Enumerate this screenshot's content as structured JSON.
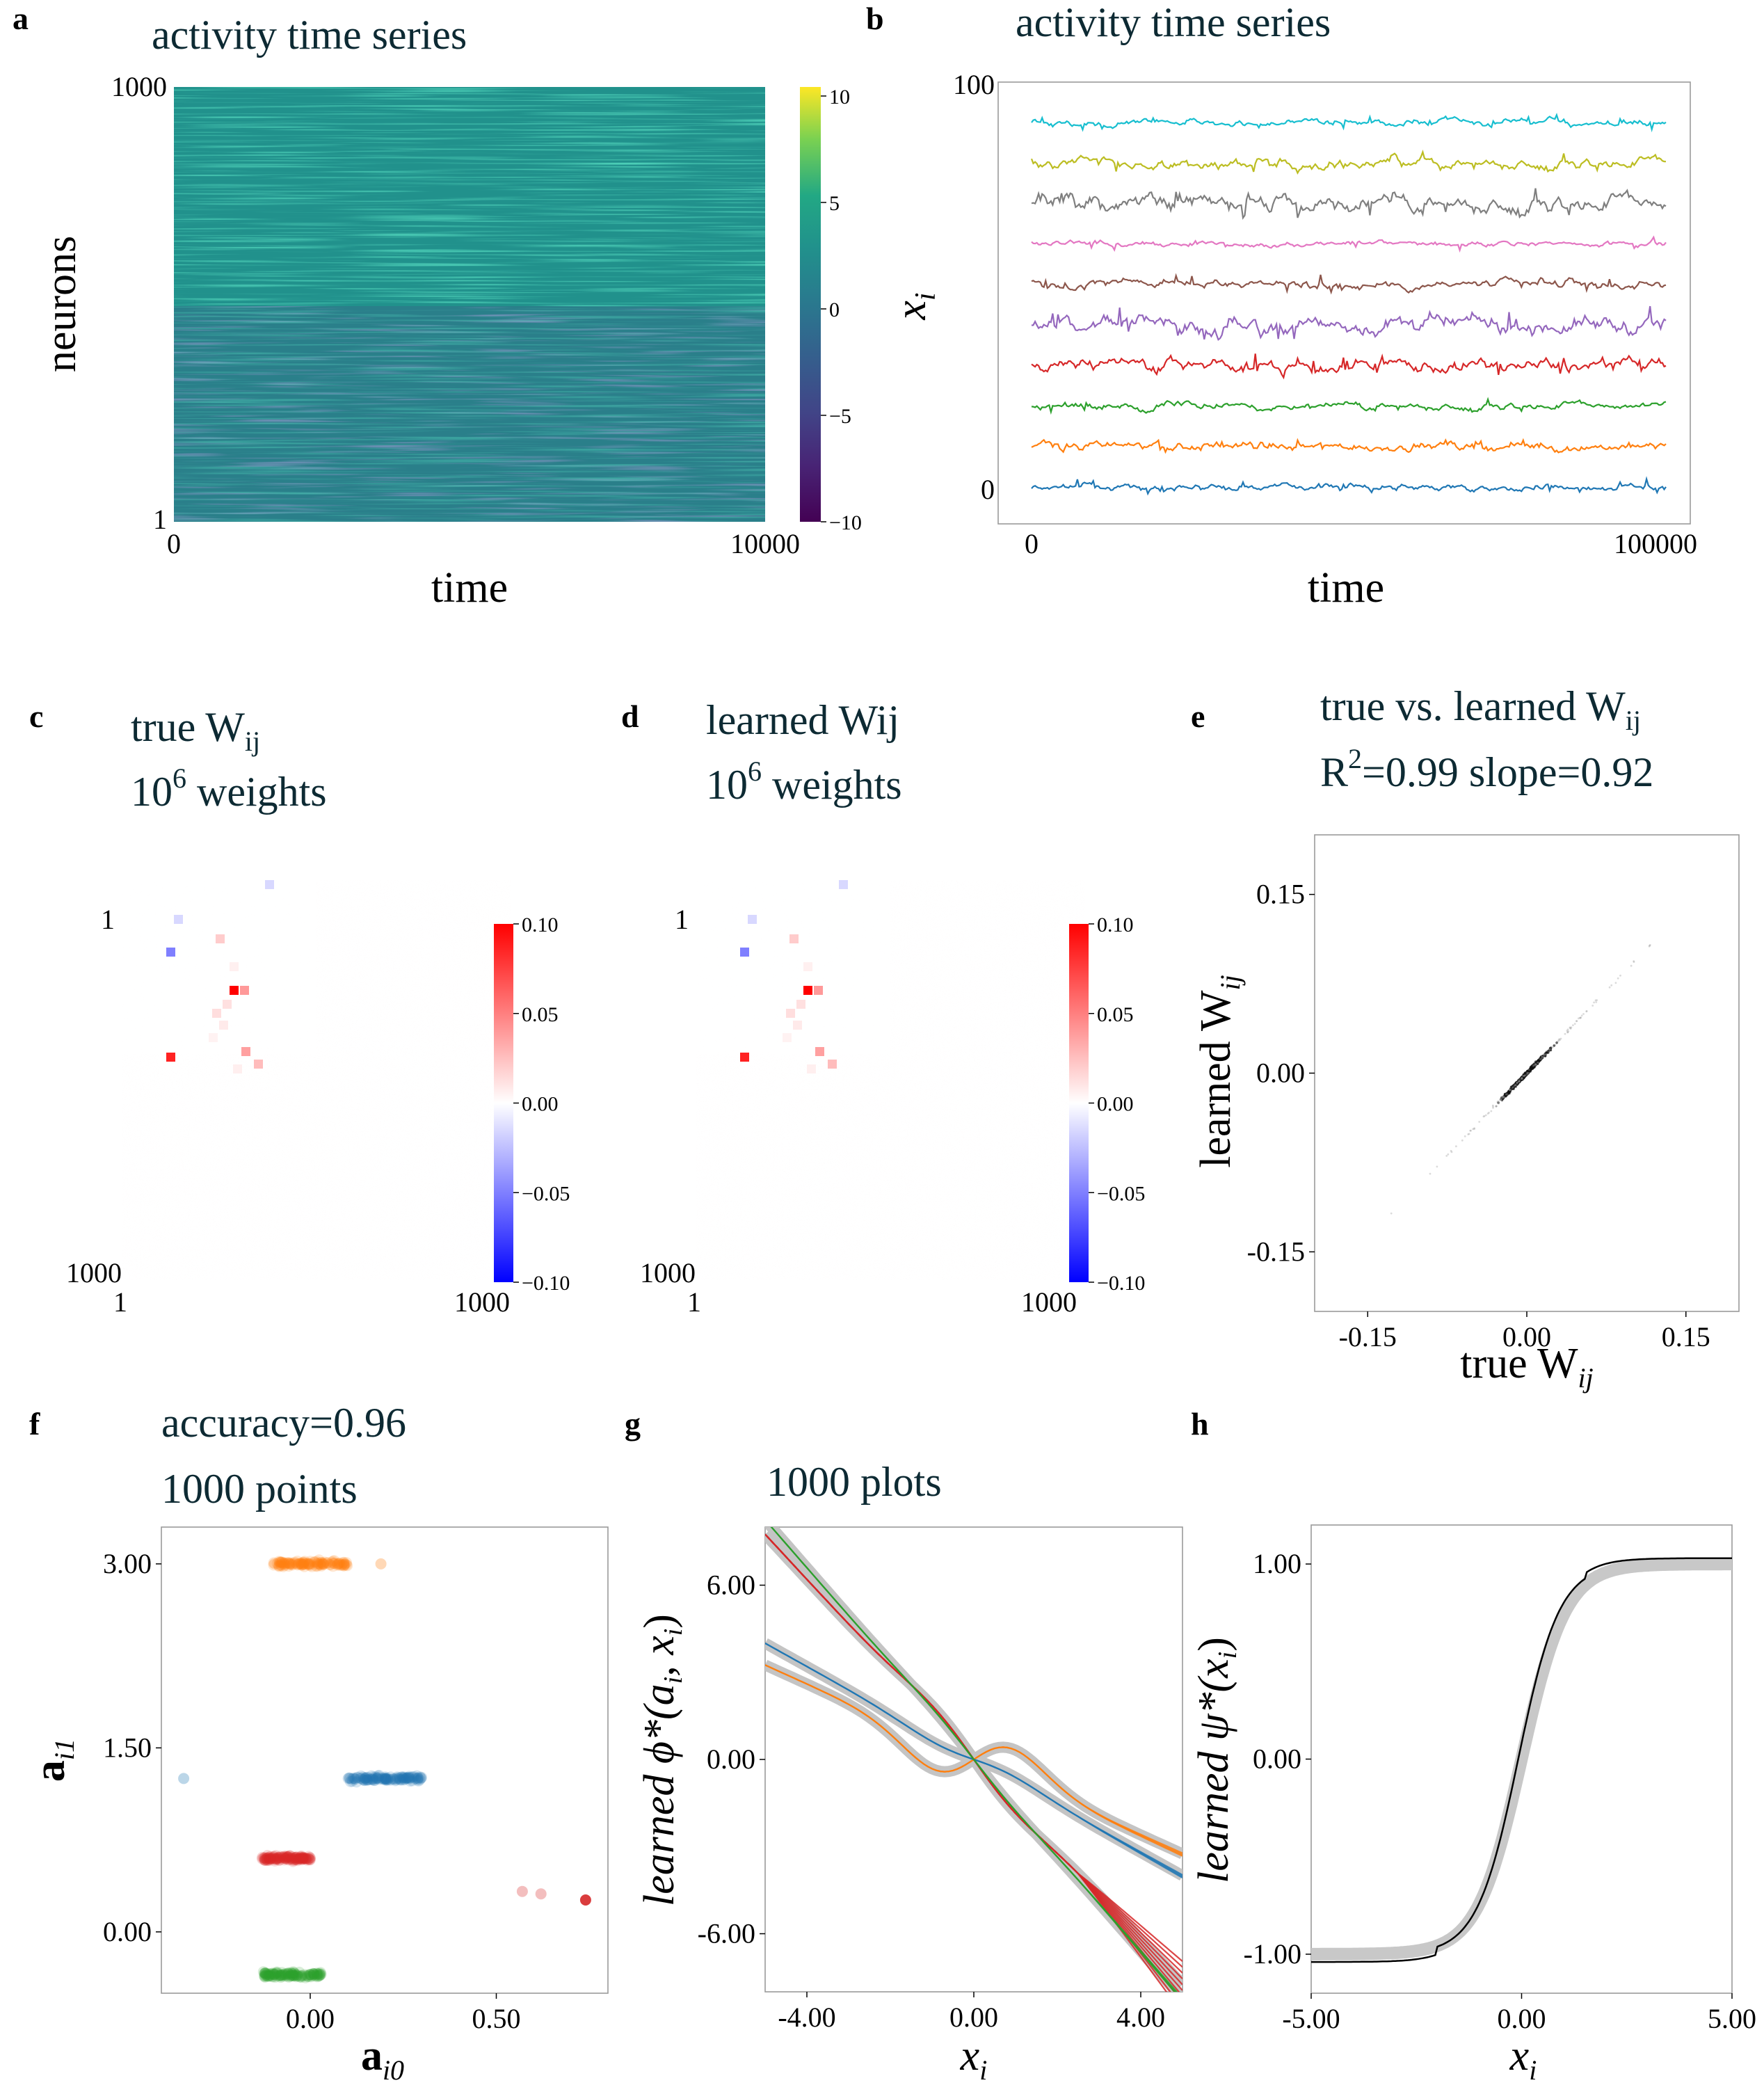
{
  "panels": [
    {
      "id": "a",
      "label": "a",
      "title": "activity time series",
      "chart_data": {
        "type": "heatmap",
        "title": "activity time series",
        "xlabel": "time",
        "ylabel": "neurons",
        "x_ticks": [
          "0",
          "10000"
        ],
        "y_ticks": [
          "1000",
          "1"
        ],
        "xlim": [
          0,
          10000
        ],
        "ylim": [
          1,
          1000
        ],
        "colorbar": {
          "ticks": [
            "10",
            "5",
            "0",
            "−5",
            "−10"
          ],
          "range": [
            -10,
            10
          ],
          "colormap": "viridis"
        },
        "block_boundary_neuron": 500
      }
    },
    {
      "id": "b",
      "label": "b",
      "title": "activity time series",
      "chart_data": {
        "type": "line",
        "title": "activity time series",
        "xlabel": "time",
        "ylabel": "x_i",
        "ylabel_display": "x",
        "ylabel_sub": "i",
        "x_ticks": [
          "0",
          "100000"
        ],
        "y_ticks": [
          "100",
          "0"
        ],
        "xlim": [
          0,
          100000
        ],
        "ylim": [
          0,
          100
        ],
        "series": [
          {
            "baseline": 0,
            "color": "#1f77b4",
            "amplitude": 3
          },
          {
            "baseline": 10,
            "color": "#ff7f0e",
            "amplitude": 4
          },
          {
            "baseline": 20,
            "color": "#2ca02c",
            "amplitude": 3.5
          },
          {
            "baseline": 30,
            "color": "#d62728",
            "amplitude": 6
          },
          {
            "baseline": 40,
            "color": "#9467bd",
            "amplitude": 8
          },
          {
            "baseline": 50,
            "color": "#8c564b",
            "amplitude": 4
          },
          {
            "baseline": 60,
            "color": "#e377c2",
            "amplitude": 2.5
          },
          {
            "baseline": 70,
            "color": "#7f7f7f",
            "amplitude": 8
          },
          {
            "baseline": 80,
            "color": "#bcbd22",
            "amplitude": 5
          },
          {
            "baseline": 90,
            "color": "#17becf",
            "amplitude": 3
          }
        ]
      }
    },
    {
      "id": "c",
      "label": "c",
      "title_line1": "true W",
      "title_line1_sub": "ij",
      "title_line2_base": "10",
      "title_line2_sup": "6",
      "title_line2_rest": " weights",
      "chart_data": {
        "type": "heatmap",
        "x_ticks": [
          "1",
          "1000"
        ],
        "y_ticks": [
          "1",
          "1000"
        ],
        "colorbar": {
          "ticks": [
            "0.10",
            "0.05",
            "0.00",
            "−0.05",
            "−0.10"
          ],
          "range": [
            -0.1,
            0.1
          ],
          "colormap": "bwr"
        }
      }
    },
    {
      "id": "d",
      "label": "d",
      "title_line1": "learned Wij",
      "title_line2_base": "10",
      "title_line2_sup": "6",
      "title_line2_rest": " weights",
      "chart_data": {
        "type": "heatmap",
        "x_ticks": [
          "1",
          "1000"
        ],
        "y_ticks": [
          "1",
          "1000"
        ],
        "colorbar": {
          "ticks": [
            "0.10",
            "0.05",
            "0.00",
            "−0.05",
            "−0.10"
          ],
          "range": [
            -0.1,
            0.1
          ],
          "colormap": "bwr"
        }
      }
    },
    {
      "id": "e",
      "label": "e",
      "title_line1": "true vs. learned W",
      "title_line1_sub": "ij",
      "title_line2_a": "R",
      "title_line2_sup": "2",
      "title_line2_b": "=0.99  slope=0.92",
      "chart_data": {
        "type": "scatter",
        "xlabel": "true W_ij",
        "ylabel": "learned W_ij",
        "xlabel_display": "true W",
        "ylabel_display": "learned W",
        "label_sub": "ij",
        "x_ticks": [
          "-0.15",
          "0.00",
          "0.15"
        ],
        "y_ticks": [
          "0.15",
          "0.00",
          "-0.15"
        ],
        "xlim": [
          -0.2,
          0.2
        ],
        "ylim": [
          -0.2,
          0.2
        ],
        "r2": 0.99,
        "slope": 0.92
      }
    },
    {
      "id": "f",
      "label": "f",
      "title_line1": "accuracy=0.96",
      "title_line2": "1000 points",
      "chart_data": {
        "type": "scatter",
        "xlabel": "a_i0",
        "ylabel": "a_i1",
        "xlabel_display": "a",
        "xlabel_sub": "i0",
        "ylabel_display": "a",
        "ylabel_sub": "i1",
        "x_ticks": [
          "0.00",
          "0.50"
        ],
        "y_ticks": [
          "3.00",
          "1.50",
          "0.00"
        ],
        "xlim": [
          -0.4,
          0.8
        ],
        "ylim": [
          -0.5,
          3.3
        ],
        "clusters": [
          {
            "color": "#ff7f0e",
            "x_range": [
              -0.1,
              0.1
            ],
            "y": 3.0,
            "count": 250
          },
          {
            "color": "#1f77b4",
            "x_range": [
              0.1,
              0.3
            ],
            "y": 1.25,
            "count": 250
          },
          {
            "color": "#d62728",
            "x_range": [
              -0.13,
              0.0
            ],
            "y": 0.6,
            "count": 250
          },
          {
            "color": "#2ca02c",
            "x_range": [
              -0.13,
              0.03
            ],
            "y": -0.35,
            "count": 250
          }
        ],
        "outliers": [
          {
            "x": -0.34,
            "y": 1.25,
            "color": "#1f77b4"
          },
          {
            "x": 0.19,
            "y": 3.0,
            "color": "#ff7f0e"
          },
          {
            "x": 0.57,
            "y": 0.33,
            "color": "#d62728"
          },
          {
            "x": 0.62,
            "y": 0.31,
            "color": "#d62728"
          },
          {
            "x": 0.74,
            "y": 0.26,
            "color": "#d62728"
          }
        ]
      }
    },
    {
      "id": "g",
      "label": "g",
      "title": "1000 plots",
      "chart_data": {
        "type": "line",
        "title": "1000 plots",
        "xlabel": "x_i",
        "ylabel": "learned phi*(a_i, x_i)",
        "xlabel_display": "x",
        "xlabel_sub": "i",
        "ylabel_display": "learned ϕ*(a",
        "ylabel_sub1": "i",
        "ylabel_mid": ", x",
        "ylabel_sub2": "i",
        "ylabel_end": ")",
        "x_ticks": [
          "-4.00",
          "0.00",
          "4.00"
        ],
        "y_ticks": [
          "6.00",
          "0.00",
          "-6.00"
        ],
        "xlim": [
          -5,
          5
        ],
        "ylim": [
          -8,
          8
        ],
        "series": [
          {
            "color": "#ff7f0e",
            "slope": -0.65,
            "bump": 1.6
          },
          {
            "color": "#1f77b4",
            "slope": -0.8,
            "bump": 0.3
          },
          {
            "color": "#d62728",
            "slope": -1.55,
            "bump": -0.5
          },
          {
            "color": "#2ca02c",
            "slope": -1.65,
            "bump": -0.2
          }
        ]
      }
    },
    {
      "id": "h",
      "label": "h",
      "chart_data": {
        "type": "line",
        "xlabel": "x_i",
        "ylabel": "learned psi*(x_i)",
        "xlabel_display": "x",
        "xlabel_sub": "i",
        "ylabel_display": "learned ψ*(x",
        "ylabel_sub": "i",
        "ylabel_end": ")",
        "x_ticks": [
          "-5.00",
          "0.00",
          "5.00"
        ],
        "y_ticks": [
          "1.00",
          "0.00",
          "-1.00"
        ],
        "xlim": [
          -5,
          5
        ],
        "ylim": [
          -1.2,
          1.2
        ],
        "function": "tanh"
      }
    }
  ]
}
